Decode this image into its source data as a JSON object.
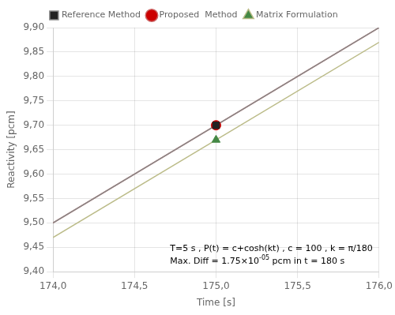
{
  "chart_data": {
    "type": "line",
    "xlabel": "Time [s]",
    "ylabel": "Reactivity [pcm]",
    "xlim": [
      174.0,
      176.0
    ],
    "ylim": [
      9.4,
      9.9
    ],
    "xticks": [
      {
        "value": 174.0,
        "label": "174,0"
      },
      {
        "value": 174.5,
        "label": "174,5"
      },
      {
        "value": 175.0,
        "label": "175,0"
      },
      {
        "value": 175.5,
        "label": "175,5"
      },
      {
        "value": 176.0,
        "label": "176,0"
      }
    ],
    "yticks": [
      {
        "value": 9.4,
        "label": "9,40"
      },
      {
        "value": 9.45,
        "label": "9,45"
      },
      {
        "value": 9.5,
        "label": "9,50"
      },
      {
        "value": 9.55,
        "label": "9,55"
      },
      {
        "value": 9.6,
        "label": "9,60"
      },
      {
        "value": 9.65,
        "label": "9,65"
      },
      {
        "value": 9.7,
        "label": "9,70"
      },
      {
        "value": 9.75,
        "label": "9,75"
      },
      {
        "value": 9.8,
        "label": "9,80"
      },
      {
        "value": 9.85,
        "label": "9,85"
      },
      {
        "value": 9.9,
        "label": "9,90"
      }
    ],
    "grid": true,
    "legend": "top",
    "series": [
      {
        "name": "Reference Method",
        "color": "#888888",
        "marker": "square",
        "marker_color": "#222222",
        "x": [
          174.0,
          176.0
        ],
        "values": [
          9.5,
          9.9
        ],
        "marker_x": 175.0,
        "marker_value": 9.7
      },
      {
        "name": "Proposed  Method",
        "color": "#CC6666",
        "marker": "circle",
        "marker_color": "#CC0000",
        "x": [
          174.0,
          176.0
        ],
        "values": [
          9.5,
          9.9
        ],
        "marker_x": 175.0,
        "marker_value": 9.7
      },
      {
        "name": "Matrix Formulation",
        "color": "#BBBB88",
        "marker": "triangle",
        "marker_color": "#448844",
        "x": [
          174.0,
          176.0
        ],
        "values": [
          9.47,
          9.87
        ],
        "marker_x": 175.0,
        "marker_value": 9.67
      }
    ],
    "annotations": [
      {
        "text": "T=5 s , P(t) = c+cosh(kt) , c = 100 , k = π/180"
      },
      {
        "text": "Max. Diff = 1.75×10",
        "superscript": "-05",
        "suffix": " pcm in t = 180 s"
      }
    ]
  }
}
